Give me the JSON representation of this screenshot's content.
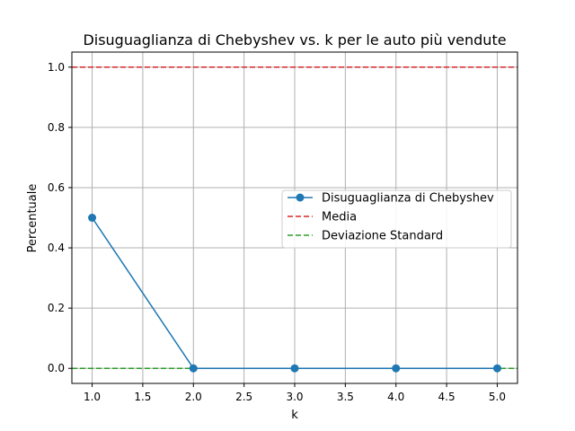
{
  "chart_data": {
    "type": "line",
    "title": "Disuguaglianza di Chebyshev vs. k per le auto più vendute",
    "xlabel": "k",
    "ylabel": "Percentuale",
    "x": [
      1.0,
      2.0,
      3.0,
      4.0,
      5.0
    ],
    "xlim": [
      0.8,
      5.2
    ],
    "ylim": [
      -0.05,
      1.05
    ],
    "xticks": [
      1.0,
      1.5,
      2.0,
      2.5,
      3.0,
      3.5,
      4.0,
      4.5,
      5.0
    ],
    "xtick_labels": [
      "1.0",
      "1.5",
      "2.0",
      "2.5",
      "3.0",
      "3.5",
      "4.0",
      "4.5",
      "5.0"
    ],
    "yticks": [
      0.0,
      0.2,
      0.4,
      0.6,
      0.8,
      1.0
    ],
    "ytick_labels": [
      "0.0",
      "0.2",
      "0.4",
      "0.6",
      "0.8",
      "1.0"
    ],
    "grid": true,
    "legend_position": "center-right",
    "series": [
      {
        "name": "Disuguaglianza di Chebyshev",
        "values": [
          0.5,
          0.0,
          0.0,
          0.0,
          0.0
        ],
        "color": "#1f77b4",
        "style": "solid",
        "marker": "circle"
      }
    ],
    "reference_lines": [
      {
        "name": "Media",
        "y": 1.0,
        "color": "#d62728",
        "style": "dashed"
      },
      {
        "name": "Deviazione Standard",
        "y": 0.0,
        "color": "#2ca02c",
        "style": "dashed"
      }
    ]
  }
}
